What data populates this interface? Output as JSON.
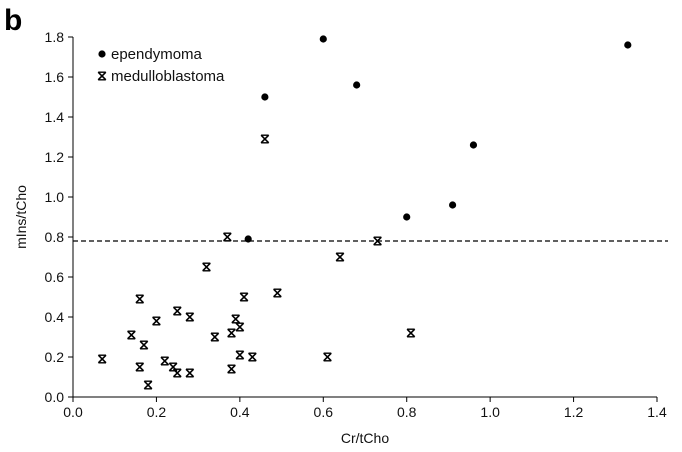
{
  "chart_data": {
    "type": "scatter",
    "panel_label": "b",
    "xlabel": "Cr/tCho",
    "ylabel": "mIns/tCho",
    "xlim": [
      0,
      1.4
    ],
    "ylim": [
      0,
      1.8
    ],
    "xticks": [
      "0.0",
      "0.2",
      "0.4",
      "0.6",
      "0.8",
      "1.0",
      "1.2",
      "1.4"
    ],
    "yticks": [
      "0.0",
      "0.2",
      "0.4",
      "0.6",
      "0.8",
      "1.0",
      "1.2",
      "1.4",
      "1.6",
      "1.8"
    ],
    "grid": false,
    "legend_position": "top-left",
    "threshold_y": 0.78,
    "threshold_style": "dashed",
    "series": [
      {
        "name": "ependymoma",
        "marker": "circle",
        "color": "#000000",
        "points": [
          [
            0.42,
            0.79
          ],
          [
            0.46,
            1.5
          ],
          [
            0.6,
            1.79
          ],
          [
            0.68,
            1.56
          ],
          [
            0.8,
            0.9
          ],
          [
            0.91,
            0.96
          ],
          [
            0.96,
            1.26
          ],
          [
            1.33,
            1.76
          ]
        ]
      },
      {
        "name": "medulloblastoma",
        "marker": "asterisk",
        "color": "#000000",
        "points": [
          [
            0.07,
            0.19
          ],
          [
            0.14,
            0.31
          ],
          [
            0.16,
            0.49
          ],
          [
            0.16,
            0.15
          ],
          [
            0.17,
            0.26
          ],
          [
            0.18,
            0.06
          ],
          [
            0.2,
            0.38
          ],
          [
            0.22,
            0.18
          ],
          [
            0.24,
            0.15
          ],
          [
            0.25,
            0.43
          ],
          [
            0.25,
            0.12
          ],
          [
            0.28,
            0.4
          ],
          [
            0.28,
            0.12
          ],
          [
            0.32,
            0.65
          ],
          [
            0.34,
            0.3
          ],
          [
            0.37,
            0.8
          ],
          [
            0.38,
            0.14
          ],
          [
            0.38,
            0.32
          ],
          [
            0.39,
            0.39
          ],
          [
            0.4,
            0.35
          ],
          [
            0.4,
            0.21
          ],
          [
            0.41,
            0.5
          ],
          [
            0.43,
            0.2
          ],
          [
            0.46,
            1.29
          ],
          [
            0.49,
            0.52
          ],
          [
            0.61,
            0.2
          ],
          [
            0.64,
            0.7
          ],
          [
            0.73,
            0.78
          ],
          [
            0.81,
            0.32
          ]
        ]
      }
    ]
  }
}
